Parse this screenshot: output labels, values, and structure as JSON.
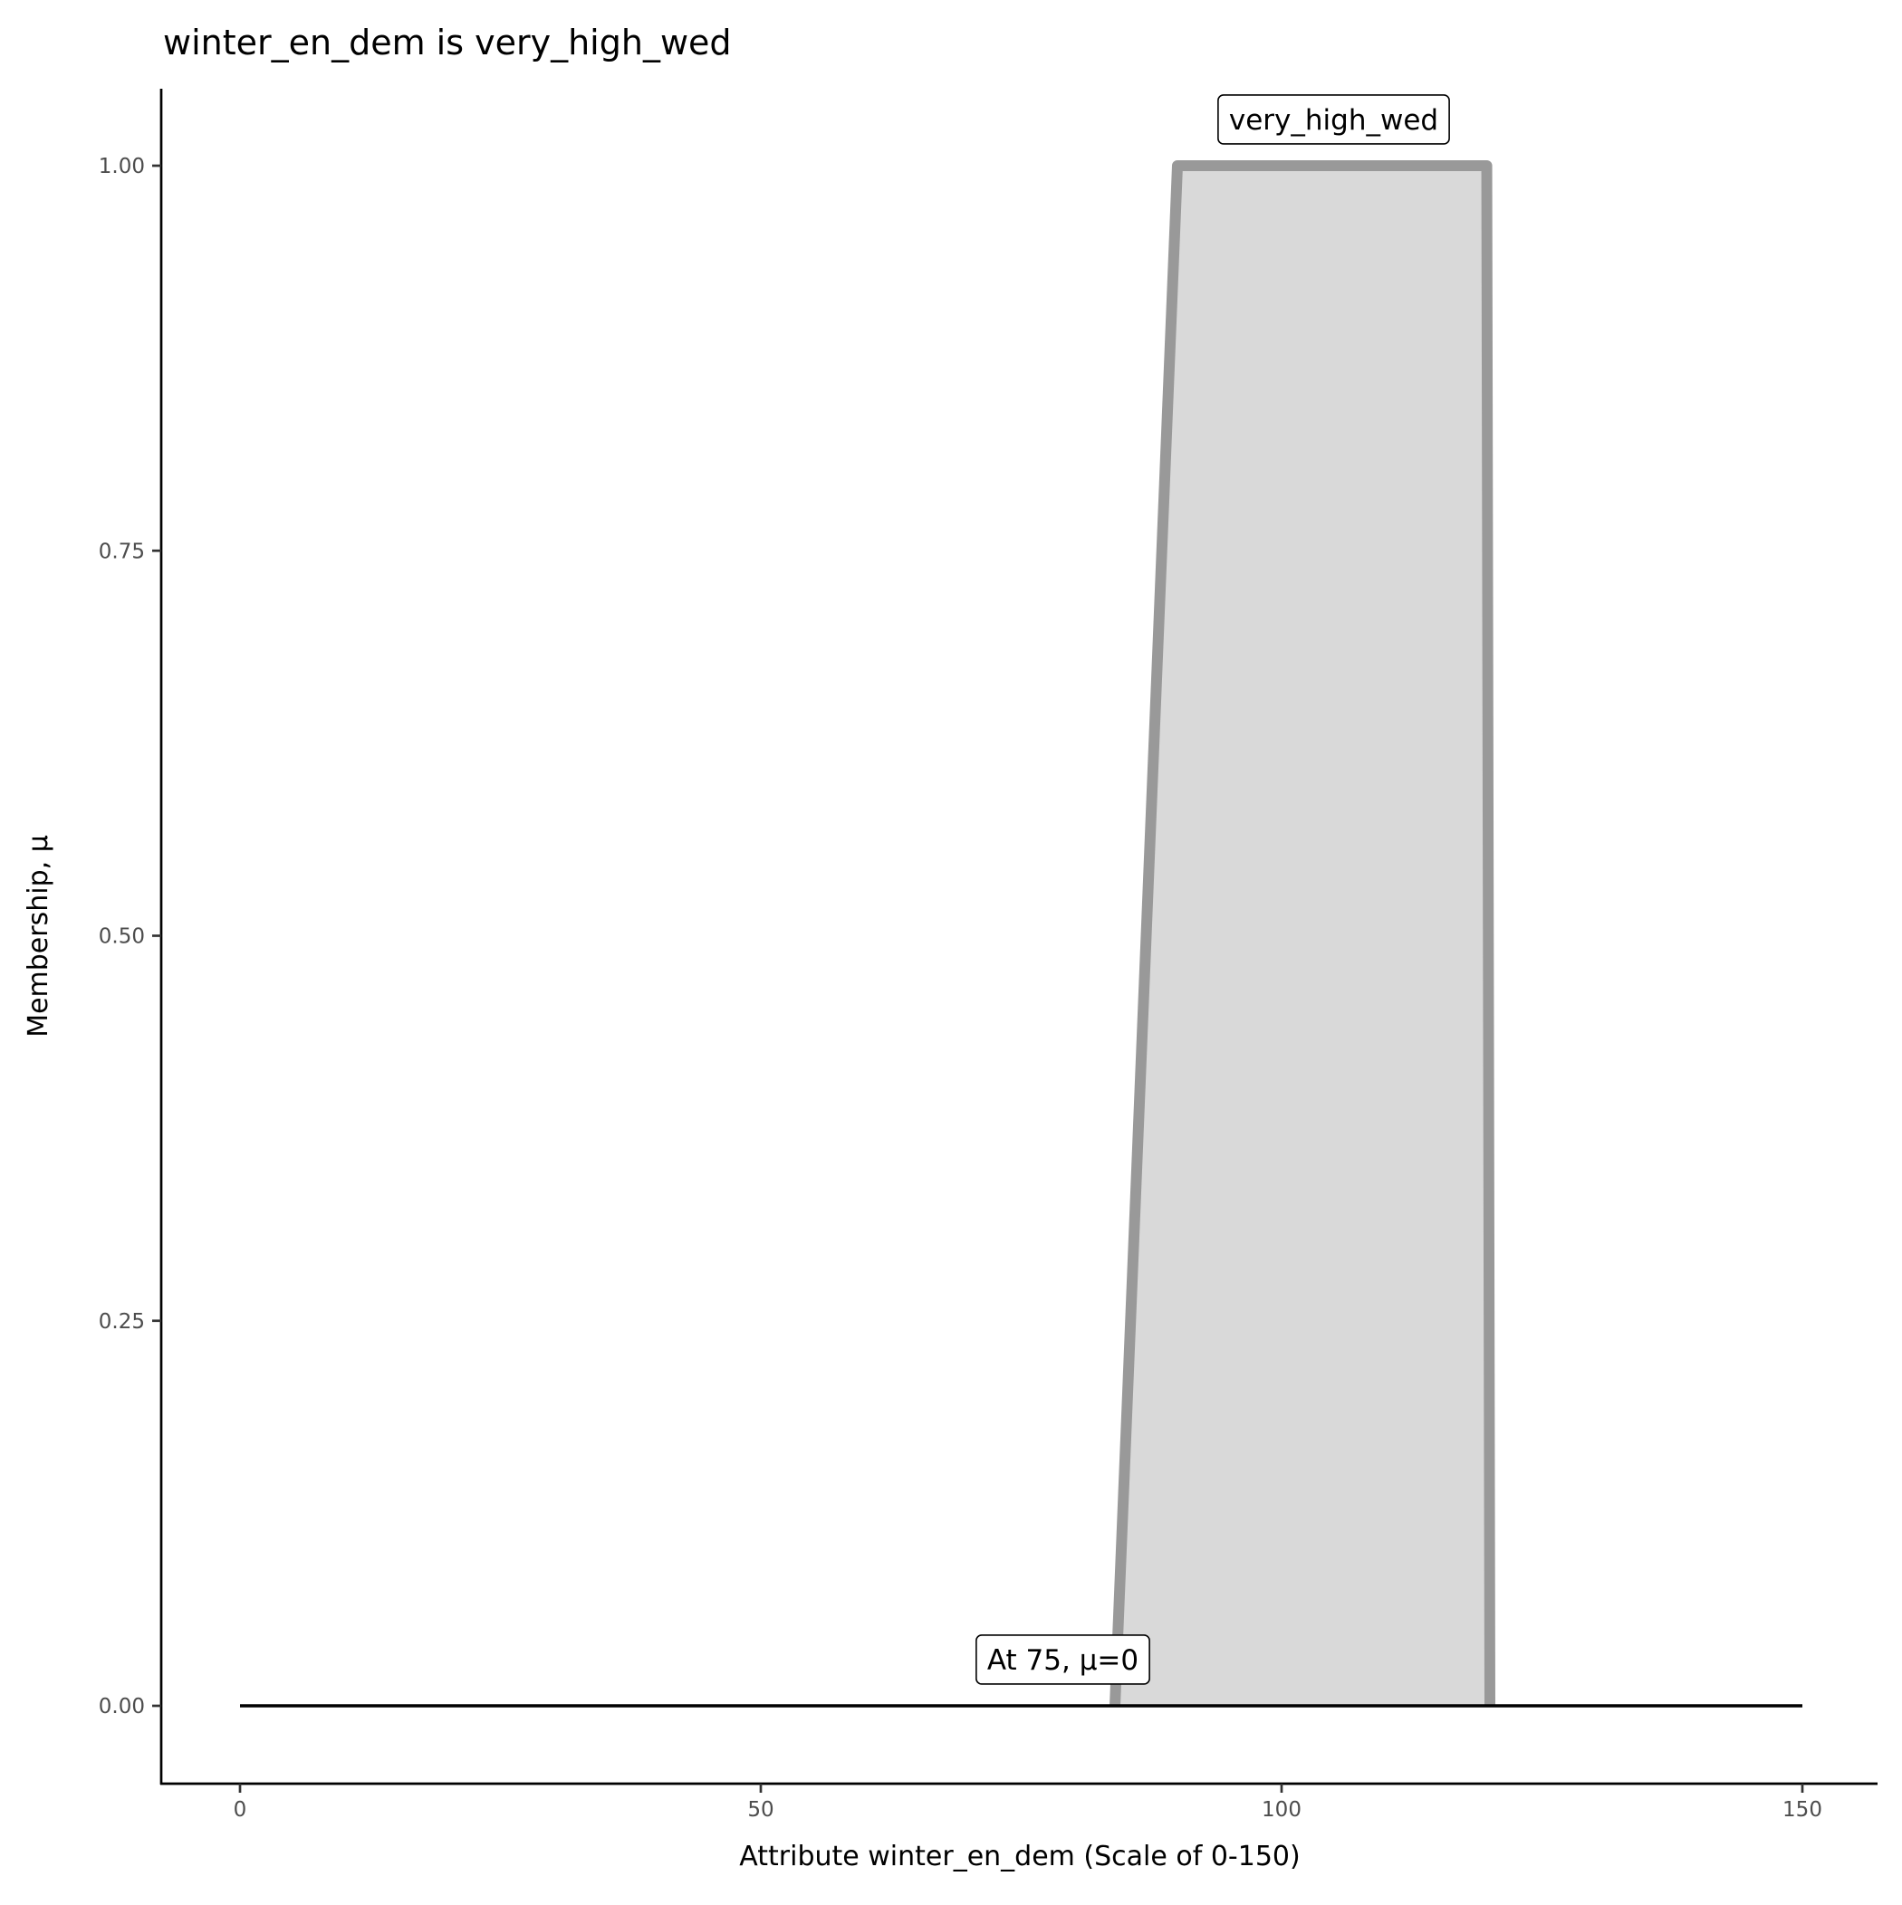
{
  "chart_data": {
    "type": "area",
    "title": "winter_en_dem is very_high_wed",
    "xlabel": "Attribute winter_en_dem (Scale of 0-150)",
    "ylabel": "Membership, μ",
    "xlim": [
      -7.5,
      157.5
    ],
    "ylim": [
      -0.05,
      1.05
    ],
    "x_ticks": [
      0,
      50,
      100,
      150
    ],
    "x_tick_labels": [
      "0",
      "50",
      "100",
      "150"
    ],
    "y_ticks": [
      0,
      0.25,
      0.5,
      0.75,
      1
    ],
    "y_tick_labels": [
      "0.00",
      "0.25",
      "0.50",
      "0.75",
      "1.00"
    ],
    "grid": false,
    "series": [
      {
        "name": "very_high_wed",
        "x": [
          84,
          90,
          119.7,
          120
        ],
        "y": [
          0,
          1,
          1,
          0
        ],
        "fill": "#d9d9d9",
        "stroke": "#999999"
      }
    ],
    "baseline": {
      "x": [
        0,
        150
      ],
      "y": [
        0,
        0
      ],
      "color": "#000000"
    },
    "annotations": [
      {
        "text": "very_high_wed",
        "x": 105,
        "y": 1.03
      },
      {
        "text": "At 75, μ=0",
        "x": 79,
        "y": 0.03
      }
    ]
  }
}
